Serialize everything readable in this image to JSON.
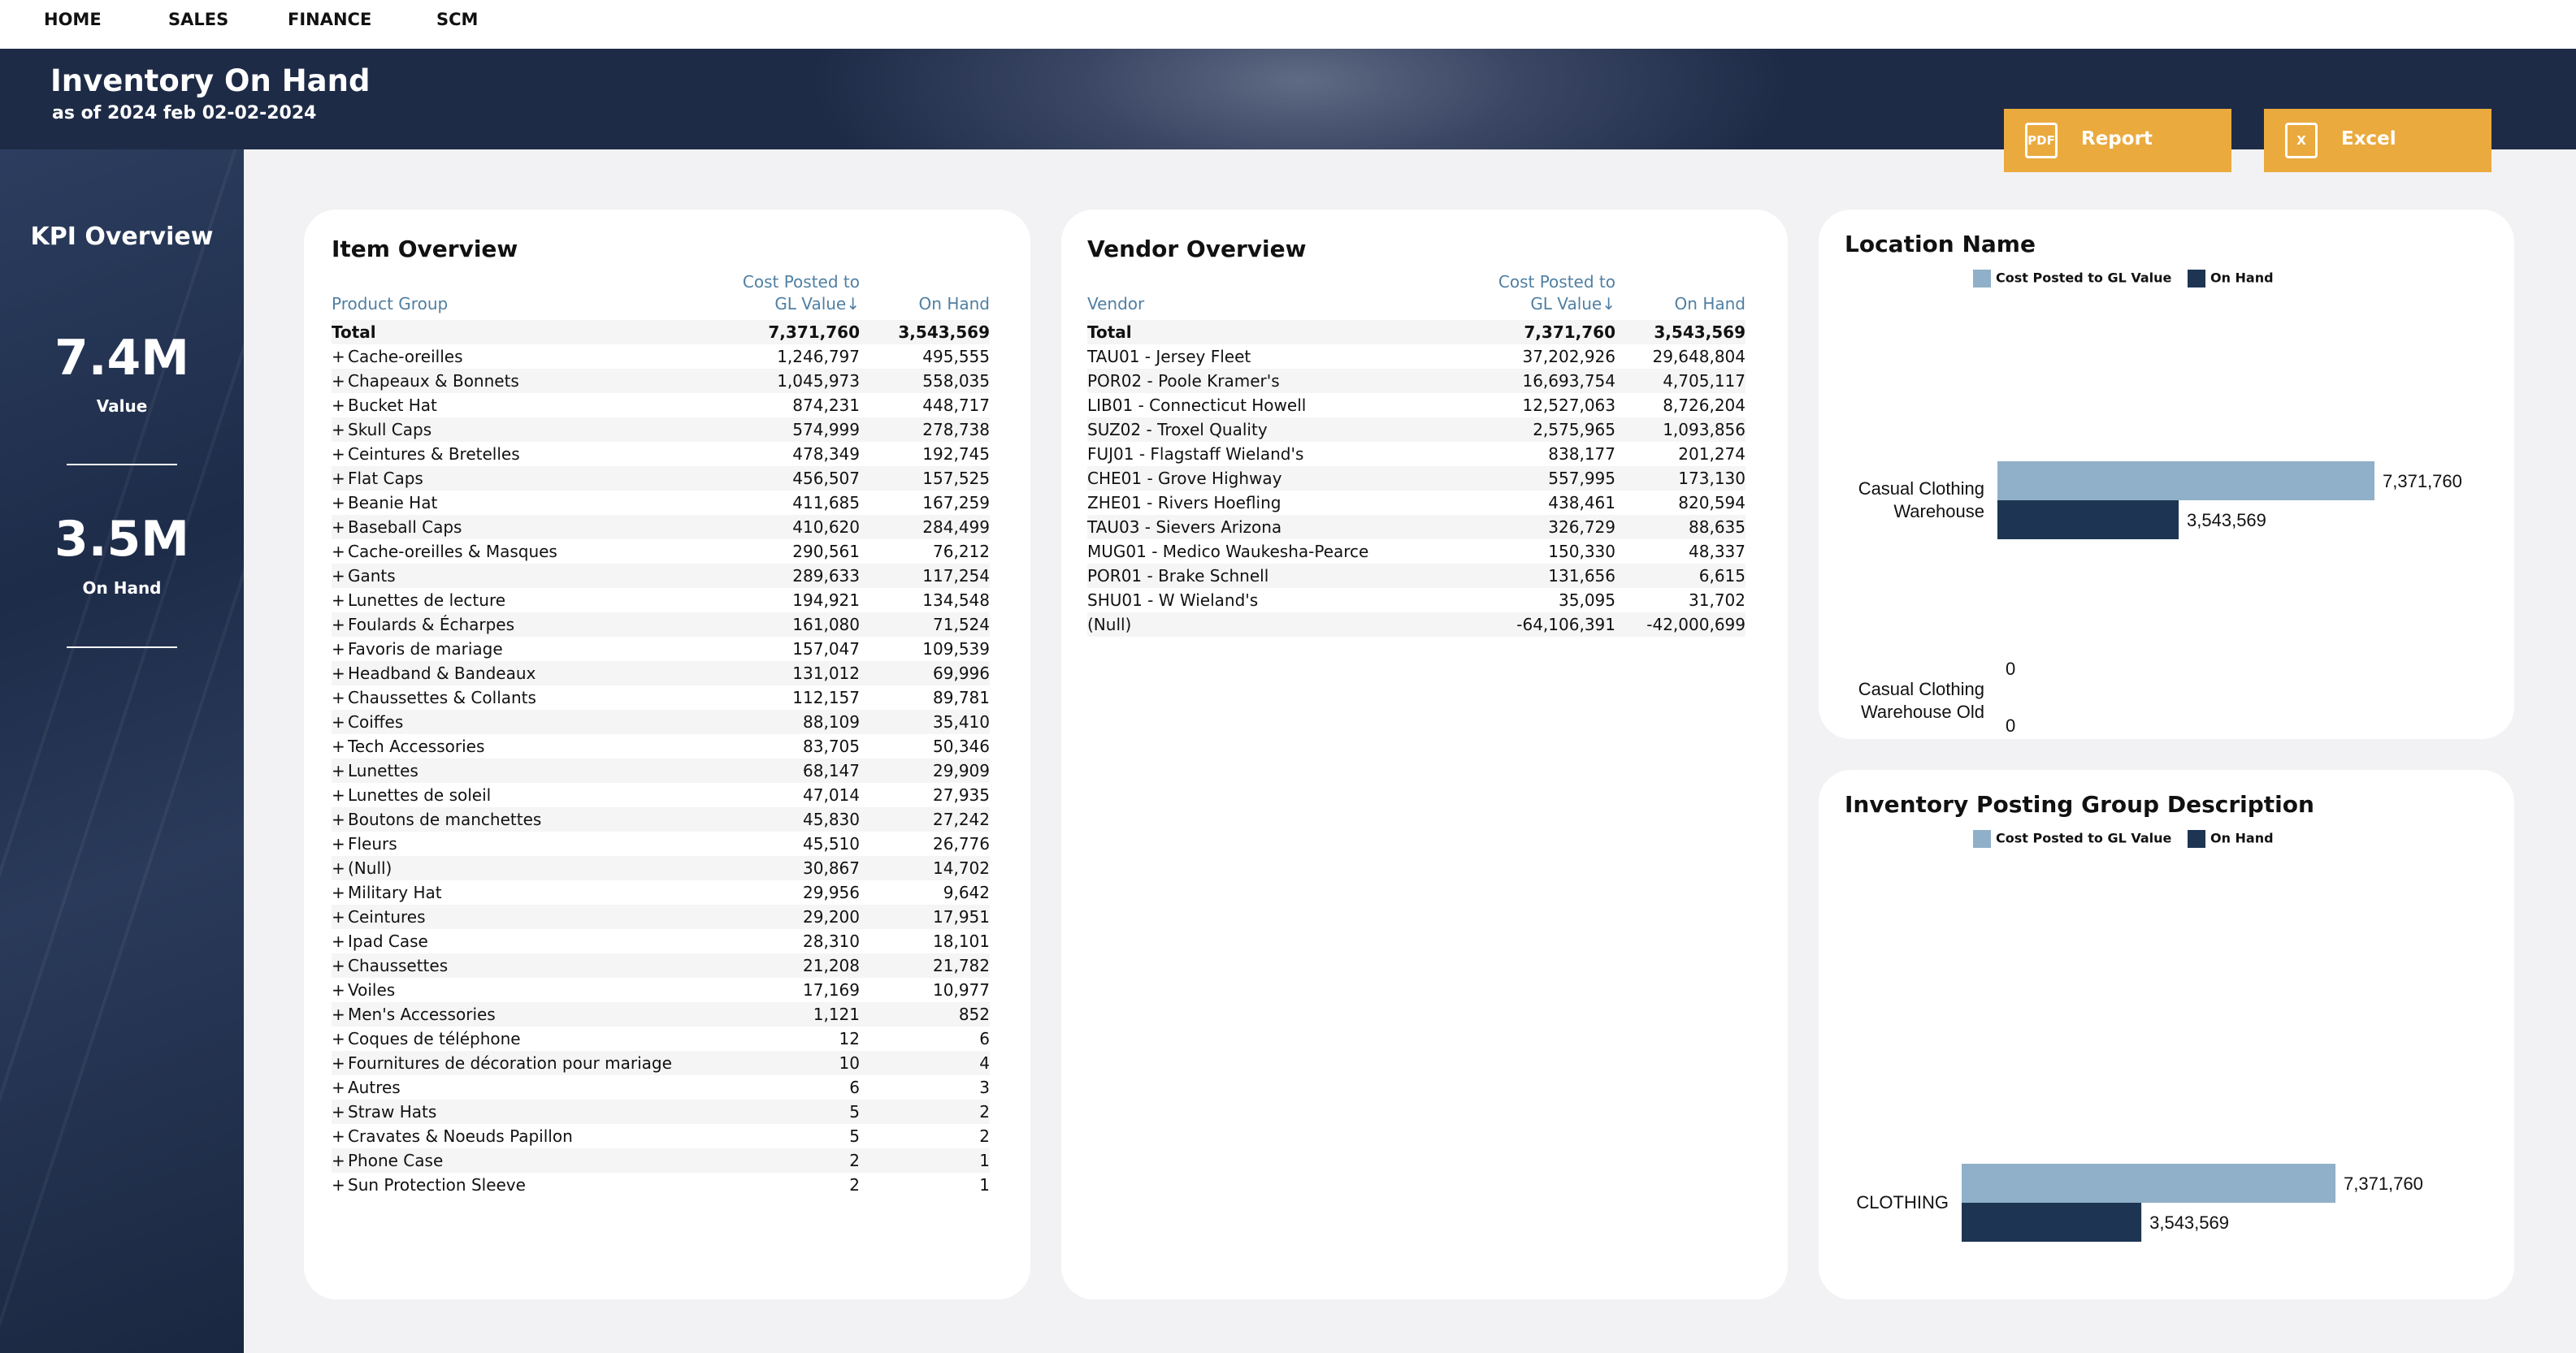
{
  "nav": {
    "items": [
      "HOME",
      "SALES",
      "FINANCE",
      "SCM"
    ]
  },
  "header": {
    "title": "Inventory On Hand",
    "subtitle": "as of 2024 feb 02-02-2024"
  },
  "actions": {
    "report_label": "Report",
    "excel_label": "Excel",
    "report_icon_text": "PDF",
    "excel_icon_text": "X"
  },
  "kpi": {
    "title": "KPI Overview",
    "value": {
      "number": "7.4M",
      "label": "Value"
    },
    "on_hand": {
      "number": "3.5M",
      "label": "On Hand"
    }
  },
  "colors": {
    "accent": "#eaaa3e",
    "navy": "#1e2b47",
    "series_cost": "#8fb0c8",
    "series_onhand": "#1d3553",
    "header_text": "#4f7fa3"
  },
  "item_overview": {
    "title": "Item Overview",
    "columns": [
      "Product Group",
      "Cost Posted to GL Value",
      "On Hand"
    ],
    "sort_icon": "↓",
    "total": {
      "label": "Total",
      "cost": "7,371,760",
      "on_hand": "3,543,569"
    },
    "rows": [
      {
        "name": "Cache-oreilles",
        "cost": "1,246,797",
        "on_hand": "495,555"
      },
      {
        "name": "Chapeaux & Bonnets",
        "cost": "1,045,973",
        "on_hand": "558,035"
      },
      {
        "name": "Bucket Hat",
        "cost": "874,231",
        "on_hand": "448,717"
      },
      {
        "name": "Skull Caps",
        "cost": "574,999",
        "on_hand": "278,738"
      },
      {
        "name": "Ceintures & Bretelles",
        "cost": "478,349",
        "on_hand": "192,745"
      },
      {
        "name": "Flat Caps",
        "cost": "456,507",
        "on_hand": "157,525"
      },
      {
        "name": "Beanie Hat",
        "cost": "411,685",
        "on_hand": "167,259"
      },
      {
        "name": "Baseball Caps",
        "cost": "410,620",
        "on_hand": "284,499"
      },
      {
        "name": "Cache-oreilles & Masques",
        "cost": "290,561",
        "on_hand": "76,212"
      },
      {
        "name": "Gants",
        "cost": "289,633",
        "on_hand": "117,254"
      },
      {
        "name": "Lunettes de lecture",
        "cost": "194,921",
        "on_hand": "134,548"
      },
      {
        "name": "Foulards & Écharpes",
        "cost": "161,080",
        "on_hand": "71,524"
      },
      {
        "name": "Favoris de mariage",
        "cost": "157,047",
        "on_hand": "109,539"
      },
      {
        "name": "Headband & Bandeaux",
        "cost": "131,012",
        "on_hand": "69,996"
      },
      {
        "name": "Chaussettes & Collants",
        "cost": "112,157",
        "on_hand": "89,781"
      },
      {
        "name": "Coiffes",
        "cost": "88,109",
        "on_hand": "35,410"
      },
      {
        "name": "Tech Accessories",
        "cost": "83,705",
        "on_hand": "50,346"
      },
      {
        "name": "Lunettes",
        "cost": "68,147",
        "on_hand": "29,909"
      },
      {
        "name": "Lunettes de soleil",
        "cost": "47,014",
        "on_hand": "27,935"
      },
      {
        "name": "Boutons de manchettes",
        "cost": "45,830",
        "on_hand": "27,242"
      },
      {
        "name": "Fleurs",
        "cost": "45,510",
        "on_hand": "26,776"
      },
      {
        "name": "(Null)",
        "cost": "30,867",
        "on_hand": "14,702"
      },
      {
        "name": "Military Hat",
        "cost": "29,956",
        "on_hand": "9,642"
      },
      {
        "name": "Ceintures",
        "cost": "29,200",
        "on_hand": "17,951"
      },
      {
        "name": "Ipad Case",
        "cost": "28,310",
        "on_hand": "18,101"
      },
      {
        "name": "Chaussettes",
        "cost": "21,208",
        "on_hand": "21,782"
      },
      {
        "name": "Voiles",
        "cost": "17,169",
        "on_hand": "10,977"
      },
      {
        "name": "Men's Accessories",
        "cost": "1,121",
        "on_hand": "852"
      },
      {
        "name": "Coques de téléphone",
        "cost": "12",
        "on_hand": "6"
      },
      {
        "name": "Fournitures de décoration pour mariage",
        "cost": "10",
        "on_hand": "4"
      },
      {
        "name": "Autres",
        "cost": "6",
        "on_hand": "3"
      },
      {
        "name": "Straw Hats",
        "cost": "5",
        "on_hand": "2"
      },
      {
        "name": "Cravates & Noeuds Papillon",
        "cost": "5",
        "on_hand": "2"
      },
      {
        "name": "Phone Case",
        "cost": "2",
        "on_hand": "1"
      },
      {
        "name": "Sun Protection Sleeve",
        "cost": "2",
        "on_hand": "1"
      }
    ]
  },
  "vendor_overview": {
    "title": "Vendor Overview",
    "columns": [
      "Vendor",
      "Cost Posted to GL Value",
      "On Hand"
    ],
    "sort_icon": "↓",
    "total": {
      "label": "Total",
      "cost": "7,371,760",
      "on_hand": "3,543,569"
    },
    "rows": [
      {
        "name": "TAU01 - Jersey Fleet",
        "cost": "37,202,926",
        "on_hand": "29,648,804"
      },
      {
        "name": "POR02 - Poole Kramer's",
        "cost": "16,693,754",
        "on_hand": "4,705,117"
      },
      {
        "name": "LIB01 - Connecticut Howell",
        "cost": "12,527,063",
        "on_hand": "8,726,204"
      },
      {
        "name": "SUZ02 - Troxel Quality",
        "cost": "2,575,965",
        "on_hand": "1,093,856"
      },
      {
        "name": "FUJ01 - Flagstaff Wieland's",
        "cost": "838,177",
        "on_hand": "201,274"
      },
      {
        "name": "CHE01 - Grove Highway",
        "cost": "557,995",
        "on_hand": "173,130"
      },
      {
        "name": "ZHE01 - Rivers Hoefling",
        "cost": "438,461",
        "on_hand": "820,594"
      },
      {
        "name": "TAU03 - Sievers Arizona",
        "cost": "326,729",
        "on_hand": "88,635"
      },
      {
        "name": "MUG01 - Medico Waukesha-Pearce",
        "cost": "150,330",
        "on_hand": "48,337"
      },
      {
        "name": "POR01 - Brake Schnell",
        "cost": "131,656",
        "on_hand": "6,615"
      },
      {
        "name": "SHU01 - W Wieland's",
        "cost": "35,095",
        "on_hand": "31,702"
      },
      {
        "name": "(Null)",
        "cost": "-64,106,391",
        "on_hand": "-42,000,699"
      }
    ]
  },
  "chart_data": [
    {
      "type": "bar",
      "orientation": "horizontal",
      "title": "Location Name",
      "categories": [
        "Casual Clothing Warehouse",
        "Casual Clothing Warehouse Old"
      ],
      "series": [
        {
          "name": "Cost Posted to GL Value",
          "values": [
            7371760,
            0
          ]
        },
        {
          "name": "On Hand",
          "values": [
            3543569,
            0
          ]
        }
      ],
      "value_labels": [
        [
          "7,371,760",
          "0"
        ],
        [
          "3,543,569",
          "0"
        ]
      ],
      "legend": "top",
      "grid": false
    },
    {
      "type": "bar",
      "orientation": "horizontal",
      "title": "Inventory Posting Group Description",
      "categories": [
        "CLOTHING"
      ],
      "series": [
        {
          "name": "Cost Posted to GL Value",
          "values": [
            7371760
          ]
        },
        {
          "name": "On Hand",
          "values": [
            3543569
          ]
        }
      ],
      "value_labels": [
        [
          "7,371,760"
        ],
        [
          "3,543,569"
        ]
      ],
      "legend": "top",
      "grid": false
    }
  ]
}
